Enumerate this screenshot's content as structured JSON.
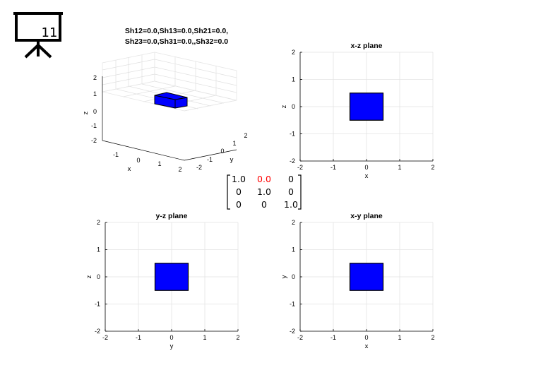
{
  "slide": {
    "number": "11",
    "icon": "presentation-board-icon"
  },
  "figure_title": {
    "line1": "Sh12=0.0,Sh13=0.0,Sh21=0.0,",
    "line2": "Sh23=0.0,Sh31=0.0,,Sh32=0.0"
  },
  "plot3d": {
    "xlabel": "x",
    "ylabel": "y",
    "zlabel": "z",
    "xticks": [
      "-1",
      "0",
      "1",
      "2"
    ],
    "yticks": [
      "-2",
      "-1",
      "0",
      "1",
      "2"
    ],
    "zticks": [
      "2",
      "1",
      "0",
      "-1",
      "-2"
    ],
    "cube_color": "#0000ff"
  },
  "chart_data": [
    {
      "type": "rectangle",
      "title": "x-z plane",
      "xlabel": "x",
      "ylabel": "z",
      "xlim": [
        -2,
        2
      ],
      "ylim": [
        -2,
        2
      ],
      "xticks": [
        "-2",
        "-1",
        "0",
        "1",
        "2"
      ],
      "yticks": [
        "-2",
        "-1",
        "0",
        "1",
        "2"
      ],
      "rect": {
        "x": [
          -0.5,
          0.5
        ],
        "y": [
          -0.5,
          0.5
        ]
      },
      "color": "#0000ff",
      "grid": true
    },
    {
      "type": "rectangle",
      "title": "y-z plane",
      "xlabel": "y",
      "ylabel": "z",
      "xlim": [
        -2,
        2
      ],
      "ylim": [
        -2,
        2
      ],
      "xticks": [
        "-2",
        "-1",
        "0",
        "1",
        "2"
      ],
      "yticks": [
        "-2",
        "-1",
        "0",
        "1",
        "2"
      ],
      "rect": {
        "x": [
          -0.5,
          0.5
        ],
        "y": [
          -0.5,
          0.5
        ]
      },
      "color": "#0000ff",
      "grid": true
    },
    {
      "type": "rectangle",
      "title": "x-y plane",
      "xlabel": "x",
      "ylabel": "y",
      "xlim": [
        -2,
        2
      ],
      "ylim": [
        -2,
        2
      ],
      "xticks": [
        "-2",
        "-1",
        "0",
        "1",
        "2"
      ],
      "yticks": [
        "-2",
        "-1",
        "0",
        "1",
        "2"
      ],
      "rect": {
        "x": [
          -0.5,
          0.5
        ],
        "y": [
          -0.5,
          0.5
        ]
      },
      "color": "#0000ff",
      "grid": true
    }
  ],
  "matrix": {
    "rows": [
      [
        "1.0",
        "0.0",
        "0"
      ],
      [
        "0",
        "1.0",
        "0"
      ],
      [
        "0",
        "0",
        "1.0"
      ]
    ],
    "highlight_color": "#ff0000"
  }
}
